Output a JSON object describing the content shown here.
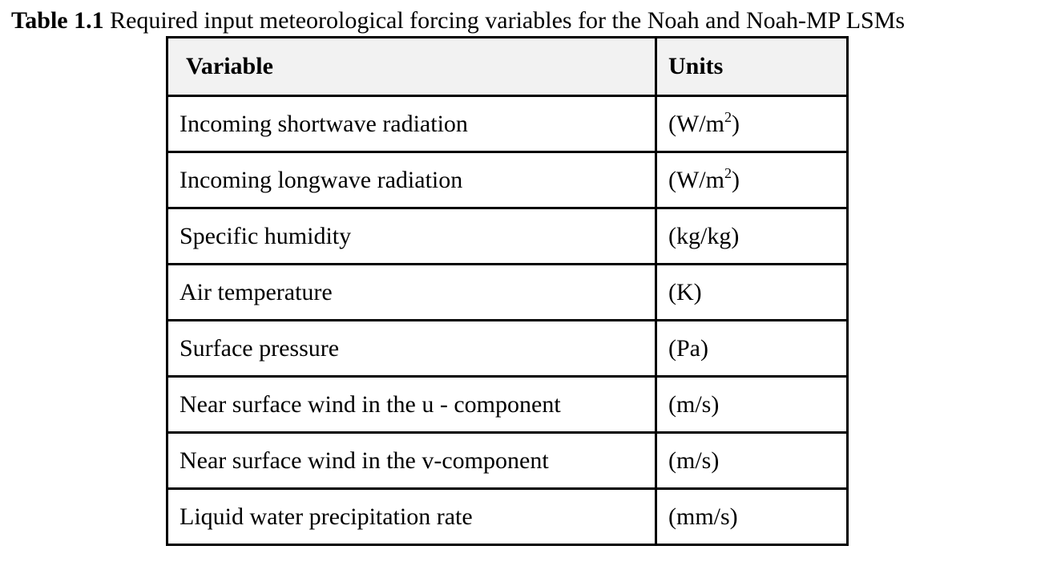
{
  "caption": {
    "label": "Table 1.1",
    "text": " Required input meteorological forcing variables for the Noah and Noah-MP LSMs"
  },
  "table": {
    "headers": [
      "Variable",
      "Units"
    ],
    "rows": [
      {
        "variable": "Incoming shortwave radiation",
        "units_pre": "(W/m",
        "units_sup": "2",
        "units_post": ")"
      },
      {
        "variable": "Incoming longwave radiation",
        "units_pre": "(W/m",
        "units_sup": "2",
        "units_post": ")"
      },
      {
        "variable": "Specific humidity",
        "units": "(kg/kg)"
      },
      {
        "variable": "Air temperature",
        "units": "(K)"
      },
      {
        "variable": "Surface pressure",
        "units": "(Pa)"
      },
      {
        "variable": "Near surface wind in the u - component",
        "units": "(m/s)"
      },
      {
        "variable": "Near surface wind in the v-component",
        "units": "(m/s)"
      },
      {
        "variable": "Liquid water precipitation rate",
        "units": "(mm/s)"
      }
    ]
  }
}
